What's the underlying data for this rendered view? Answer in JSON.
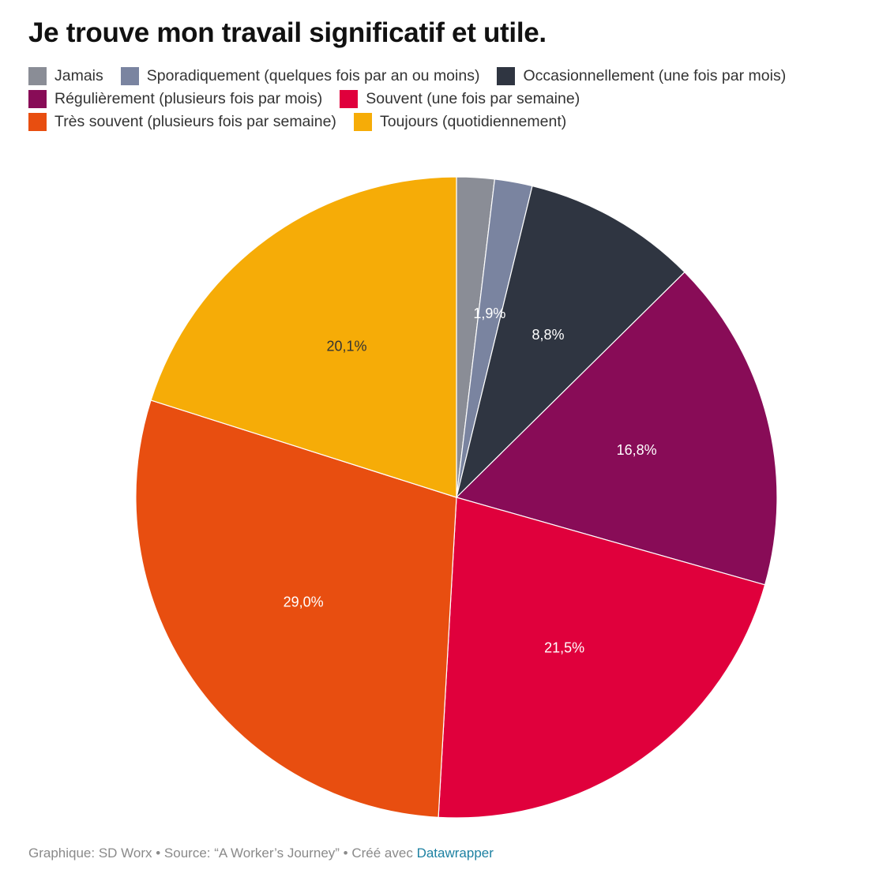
{
  "title": "Je trouve mon travail significatif et utile.",
  "chart_data": {
    "type": "pie",
    "title": "Je trouve mon travail significatif et utile.",
    "categories": [
      "Jamais",
      "Sporadiquement (quelques fois par an ou moins)",
      "Occasionnellement (une fois par mois)",
      "Régulièrement (plusieurs fois par mois)",
      "Souvent (une fois par semaine)",
      "Très souvent (plusieurs fois par semaine)",
      "Toujours (quotidiennement)"
    ],
    "values": [
      1.9,
      1.9,
      8.8,
      16.8,
      21.5,
      29.0,
      20.1
    ],
    "value_labels": [
      "",
      "1,9%",
      "8,8%",
      "16,8%",
      "21,5%",
      "29,0%",
      "20,1%"
    ],
    "colors": [
      "#8a8d96",
      "#7a84a0",
      "#2f3541",
      "#880c57",
      "#e0003c",
      "#e84e10",
      "#f6ac07"
    ],
    "label_colors": [
      "#ffffff",
      "#ffffff",
      "#ffffff",
      "#ffffff",
      "#ffffff",
      "#ffffff",
      "#333333"
    ],
    "legend": {
      "placement": "top-left",
      "rows": [
        [
          0,
          1,
          2
        ],
        [
          3,
          4
        ],
        [
          5,
          6
        ]
      ]
    }
  },
  "footer": {
    "text": "Graphique: SD Worx • Source: “A Worker’s Journey” • Créé avec ",
    "link": "Datawrapper"
  }
}
